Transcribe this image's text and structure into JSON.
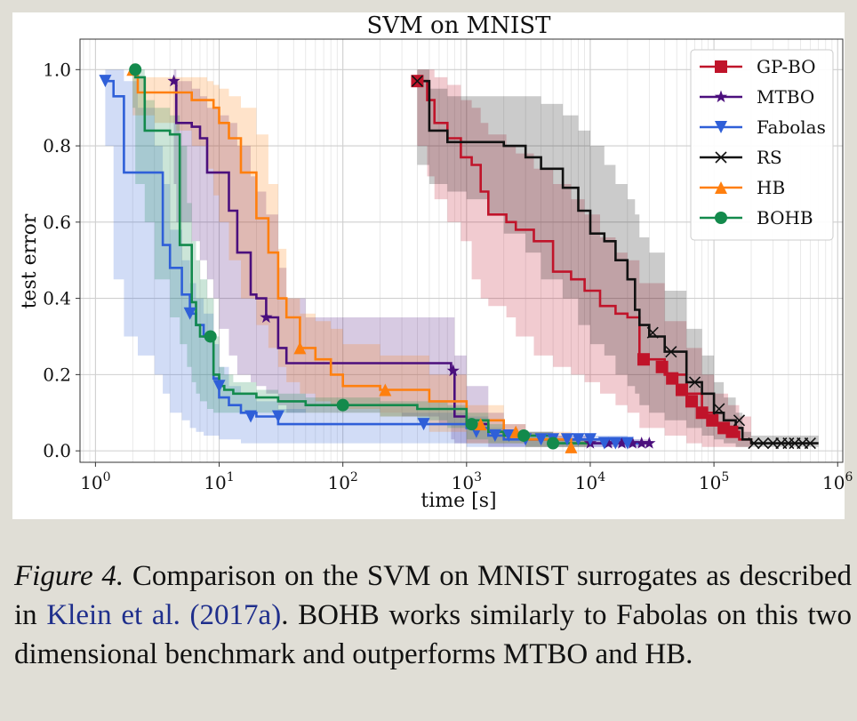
{
  "chart_data": {
    "type": "line",
    "title": "SVM on MNIST",
    "xlabel": "time [s]",
    "ylabel": "test error",
    "xscale": "log",
    "xlim": [
      0.75,
      1100000
    ],
    "ylim": [
      -0.03,
      1.08
    ],
    "grid": true,
    "legend_position": "top-right",
    "x_ticks": [
      {
        "exp": 0,
        "base": "10",
        "sup": "0"
      },
      {
        "exp": 1,
        "base": "10",
        "sup": "1"
      },
      {
        "exp": 2,
        "base": "10",
        "sup": "2"
      },
      {
        "exp": 3,
        "base": "10",
        "sup": "3"
      },
      {
        "exp": 4,
        "base": "10",
        "sup": "4"
      },
      {
        "exp": 5,
        "base": "10",
        "sup": "5"
      },
      {
        "exp": 6,
        "base": "10",
        "sup": "6"
      }
    ],
    "y_ticks": [
      "0.0",
      "0.2",
      "0.4",
      "0.6",
      "0.8",
      "1.0"
    ],
    "series": [
      {
        "name": "GP-BO",
        "color": "#c0142a",
        "marker": "square",
        "x": [
          400,
          480,
          550,
          700,
          900,
          1100,
          1300,
          1500,
          2100,
          2500,
          3500,
          5000,
          7000,
          9000,
          12000,
          16000,
          20000,
          25000,
          40000,
          60000,
          80000,
          100000,
          130000,
          160000,
          200000
        ],
        "y": [
          0.97,
          0.92,
          0.86,
          0.82,
          0.77,
          0.75,
          0.68,
          0.62,
          0.6,
          0.58,
          0.55,
          0.47,
          0.45,
          0.42,
          0.38,
          0.36,
          0.35,
          0.24,
          0.2,
          0.15,
          0.1,
          0.07,
          0.05,
          0.03,
          0.02
        ],
        "band_lower": [
          0.9,
          0.8,
          0.72,
          0.66,
          0.6,
          0.55,
          0.45,
          0.4,
          0.38,
          0.35,
          0.3,
          0.25,
          0.22,
          0.2,
          0.18,
          0.15,
          0.12,
          0.1,
          0.06,
          0.04,
          0.02,
          0.01,
          0.01,
          0.01,
          0.01
        ],
        "band_upper": [
          1.0,
          1.0,
          0.98,
          0.96,
          0.92,
          0.9,
          0.86,
          0.83,
          0.8,
          0.78,
          0.74,
          0.7,
          0.66,
          0.62,
          0.56,
          0.52,
          0.5,
          0.44,
          0.34,
          0.27,
          0.2,
          0.15,
          0.12,
          0.09,
          0.06
        ],
        "marker_x": [
          400,
          27000,
          38000,
          46000,
          55000,
          66000,
          80000,
          97000,
          120000,
          140000
        ],
        "marker_y": [
          0.97,
          0.24,
          0.22,
          0.19,
          0.16,
          0.13,
          0.1,
          0.08,
          0.06,
          0.05
        ]
      },
      {
        "name": "MTBO",
        "color": "#4b0f7d",
        "marker": "star",
        "x": [
          4.3,
          4.5,
          6,
          7,
          8,
          9,
          10,
          12,
          14,
          18,
          20,
          24,
          30,
          35,
          50,
          100,
          300,
          600,
          750,
          800,
          1000,
          1500,
          2000,
          3000,
          5000,
          10000,
          20000,
          30000
        ],
        "y": [
          0.97,
          0.86,
          0.85,
          0.82,
          0.73,
          0.73,
          0.73,
          0.63,
          0.52,
          0.41,
          0.4,
          0.35,
          0.27,
          0.23,
          0.23,
          0.23,
          0.23,
          0.23,
          0.21,
          0.09,
          0.07,
          0.05,
          0.04,
          0.03,
          0.03,
          0.02,
          0.02,
          0.02
        ],
        "band_lower": [
          0.95,
          0.7,
          0.6,
          0.55,
          0.5,
          0.45,
          0.4,
          0.32,
          0.25,
          0.2,
          0.18,
          0.17,
          0.15,
          0.12,
          0.1,
          0.1,
          0.1,
          0.09,
          0.07,
          0.03,
          0.02,
          0.02,
          0.01,
          0.01,
          0.01,
          0.01,
          0.01,
          0.01
        ],
        "band_upper": [
          1.0,
          0.97,
          0.95,
          0.93,
          0.9,
          0.9,
          0.88,
          0.86,
          0.8,
          0.72,
          0.68,
          0.62,
          0.48,
          0.4,
          0.35,
          0.35,
          0.35,
          0.35,
          0.35,
          0.25,
          0.17,
          0.1,
          0.07,
          0.05,
          0.04,
          0.03,
          0.03,
          0.03
        ],
        "marker_x": [
          4.3,
          24,
          780,
          10000,
          14000,
          18000,
          22000,
          26000,
          30000
        ],
        "marker_y": [
          0.97,
          0.35,
          0.21,
          0.02,
          0.02,
          0.02,
          0.02,
          0.02,
          0.02
        ]
      },
      {
        "name": "Fabolas",
        "color": "#2f5fd8",
        "marker": "triangle-down",
        "x": [
          1.2,
          1.4,
          1.7,
          2.2,
          3.0,
          3.5,
          4.0,
          5.0,
          5.8,
          6.5,
          7.5,
          9.0,
          10,
          12,
          15,
          20,
          30,
          50,
          100,
          300,
          500,
          800,
          1000,
          1500,
          2000,
          5000,
          10000,
          20000,
          25000
        ],
        "y": [
          0.97,
          0.93,
          0.73,
          0.73,
          0.73,
          0.54,
          0.48,
          0.41,
          0.36,
          0.33,
          0.3,
          0.19,
          0.14,
          0.12,
          0.1,
          0.09,
          0.07,
          0.07,
          0.07,
          0.07,
          0.07,
          0.07,
          0.06,
          0.04,
          0.03,
          0.03,
          0.03,
          0.02,
          0.02
        ],
        "band_lower": [
          0.9,
          0.8,
          0.45,
          0.3,
          0.25,
          0.2,
          0.15,
          0.1,
          0.08,
          0.06,
          0.05,
          0.04,
          0.04,
          0.03,
          0.03,
          0.02,
          0.02,
          0.02,
          0.02,
          0.02,
          0.02,
          0.02,
          0.02,
          0.01,
          0.01,
          0.01,
          0.01,
          0.01,
          0.01
        ],
        "band_upper": [
          1.0,
          1.0,
          0.97,
          0.9,
          0.8,
          0.7,
          0.58,
          0.5,
          0.44,
          0.4,
          0.36,
          0.28,
          0.22,
          0.17,
          0.15,
          0.13,
          0.11,
          0.1,
          0.1,
          0.1,
          0.1,
          0.1,
          0.09,
          0.06,
          0.05,
          0.04,
          0.04,
          0.03,
          0.03
        ],
        "marker_x": [
          1.2,
          5.8,
          10,
          18,
          30,
          450,
          1200,
          1700,
          2200,
          3000,
          4000,
          5000,
          6500,
          8000,
          10000,
          13000,
          16000,
          20000
        ],
        "marker_y": [
          0.97,
          0.36,
          0.17,
          0.09,
          0.09,
          0.07,
          0.05,
          0.04,
          0.04,
          0.03,
          0.03,
          0.03,
          0.03,
          0.03,
          0.03,
          0.02,
          0.02,
          0.02
        ]
      },
      {
        "name": "RS",
        "color": "#111111",
        "marker": "x",
        "x": [
          400,
          500,
          700,
          1000,
          1500,
          2000,
          3000,
          4000,
          6000,
          8000,
          10000,
          13000,
          16000,
          20000,
          23000,
          25000,
          30000,
          40000,
          60000,
          80000,
          100000,
          120000,
          150000,
          170000,
          200000,
          300000,
          500000,
          700000
        ],
        "y": [
          0.97,
          0.84,
          0.81,
          0.81,
          0.81,
          0.8,
          0.77,
          0.74,
          0.69,
          0.63,
          0.57,
          0.55,
          0.5,
          0.45,
          0.37,
          0.33,
          0.3,
          0.26,
          0.18,
          0.15,
          0.1,
          0.08,
          0.06,
          0.03,
          0.02,
          0.02,
          0.02,
          0.02
        ],
        "band_lower": [
          0.9,
          0.75,
          0.7,
          0.68,
          0.66,
          0.62,
          0.57,
          0.52,
          0.45,
          0.4,
          0.33,
          0.28,
          0.25,
          0.2,
          0.17,
          0.15,
          0.12,
          0.1,
          0.08,
          0.06,
          0.04,
          0.03,
          0.02,
          0.01,
          0.01,
          0.01,
          0.01,
          0.01
        ],
        "band_upper": [
          1.0,
          0.95,
          0.93,
          0.93,
          0.93,
          0.93,
          0.93,
          0.91,
          0.88,
          0.84,
          0.8,
          0.75,
          0.7,
          0.66,
          0.62,
          0.56,
          0.52,
          0.42,
          0.32,
          0.25,
          0.18,
          0.14,
          0.1,
          0.05,
          0.04,
          0.04,
          0.04,
          0.04
        ],
        "marker_x": [
          400,
          32000,
          45000,
          70000,
          110000,
          160000,
          210000,
          250000,
          300000,
          350000,
          400000,
          450000,
          520000,
          600000
        ],
        "marker_y": [
          0.97,
          0.31,
          0.26,
          0.18,
          0.11,
          0.08,
          0.02,
          0.02,
          0.02,
          0.02,
          0.02,
          0.02,
          0.02,
          0.02
        ]
      },
      {
        "name": "HB",
        "color": "#ff7f0e",
        "marker": "triangle-up",
        "x": [
          2.0,
          2.2,
          3.0,
          4.5,
          6.0,
          8.0,
          9.0,
          10,
          12,
          15,
          20,
          25,
          30,
          35,
          45,
          60,
          80,
          100,
          200,
          500,
          1000,
          2000,
          3000,
          7000,
          10000
        ],
        "y": [
          1.0,
          0.94,
          0.94,
          0.94,
          0.92,
          0.92,
          0.9,
          0.86,
          0.82,
          0.73,
          0.61,
          0.52,
          0.4,
          0.35,
          0.27,
          0.24,
          0.2,
          0.17,
          0.16,
          0.13,
          0.08,
          0.04,
          0.03,
          0.02,
          0.02
        ],
        "band_lower": [
          0.95,
          0.88,
          0.88,
          0.86,
          0.84,
          0.8,
          0.74,
          0.67,
          0.6,
          0.5,
          0.4,
          0.33,
          0.27,
          0.22,
          0.18,
          0.15,
          0.13,
          0.12,
          0.11,
          0.09,
          0.05,
          0.02,
          0.02,
          0.01,
          0.01
        ],
        "band_upper": [
          1.0,
          0.98,
          0.98,
          0.98,
          0.98,
          0.97,
          0.96,
          0.95,
          0.93,
          0.9,
          0.83,
          0.7,
          0.53,
          0.4,
          0.36,
          0.34,
          0.32,
          0.28,
          0.25,
          0.2,
          0.12,
          0.07,
          0.05,
          0.03,
          0.03
        ],
        "marker_x": [
          2.0,
          45,
          220,
          1300,
          2500,
          7000
        ],
        "marker_y": [
          1.0,
          0.27,
          0.16,
          0.07,
          0.05,
          0.01
        ]
      },
      {
        "name": "BOHB",
        "color": "#138a4c",
        "marker": "circle",
        "x": [
          2.0,
          2.1,
          2.5,
          3.0,
          4.0,
          4.8,
          5.5,
          6.0,
          6.5,
          7.0,
          8.0,
          9.0,
          10,
          11,
          13,
          20,
          30,
          50,
          100,
          200,
          400,
          700,
          1000,
          1500,
          2000,
          3000,
          5000,
          10000
        ],
        "y": [
          1.0,
          0.98,
          0.84,
          0.84,
          0.83,
          0.54,
          0.54,
          0.39,
          0.33,
          0.3,
          0.3,
          0.2,
          0.17,
          0.16,
          0.15,
          0.14,
          0.13,
          0.12,
          0.12,
          0.12,
          0.11,
          0.11,
          0.08,
          0.05,
          0.04,
          0.04,
          0.02,
          0.02
        ],
        "band_lower": [
          0.98,
          0.9,
          0.7,
          0.6,
          0.45,
          0.35,
          0.28,
          0.22,
          0.18,
          0.15,
          0.13,
          0.11,
          0.1,
          0.1,
          0.1,
          0.1,
          0.1,
          0.1,
          0.1,
          0.1,
          0.09,
          0.08,
          0.06,
          0.03,
          0.02,
          0.02,
          0.01,
          0.01
        ],
        "band_upper": [
          1.0,
          1.0,
          0.92,
          0.9,
          0.88,
          0.8,
          0.65,
          0.55,
          0.5,
          0.45,
          0.4,
          0.3,
          0.22,
          0.2,
          0.18,
          0.16,
          0.15,
          0.14,
          0.14,
          0.13,
          0.13,
          0.12,
          0.1,
          0.07,
          0.05,
          0.05,
          0.03,
          0.03
        ],
        "marker_x": [
          2.1,
          8.5,
          100,
          1100,
          2900,
          5000
        ],
        "marker_y": [
          1.0,
          0.3,
          0.12,
          0.07,
          0.04,
          0.02
        ]
      }
    ]
  },
  "caption": {
    "label": "Figure 4.",
    "text_before_citation": " Comparison on the SVM on MNIST surrogates as described in ",
    "citation": "Klein et al. (2017a)",
    "text_after_citation": ". BOHB works similarly to Fabolas on this two dimensional benchmark and outperforms MTBO and HB."
  }
}
